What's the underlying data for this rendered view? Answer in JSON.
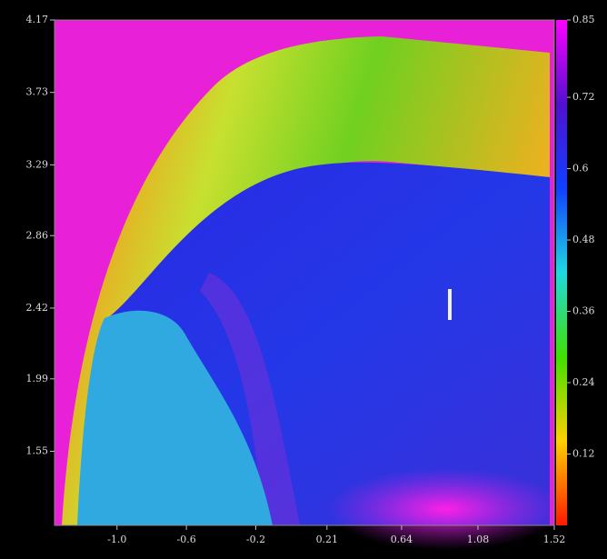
{
  "chart_data": {
    "type": "heatmap",
    "xlim": [
      -1.36,
      1.52
    ],
    "xticks": [
      {
        "value": -1.0,
        "label": "-1.0"
      },
      -0.6,
      -0.2,
      0.21,
      0.64,
      1.08,
      1.52
    ],
    "ylim": [
      1.1,
      4.17
    ],
    "yticks": [
      1.55,
      1.99,
      2.42,
      2.86,
      3.29,
      3.73,
      4.17
    ],
    "clim": [
      0,
      0.85
    ],
    "cticks": [
      0.12,
      0.24,
      0.36,
      0.48,
      0.6,
      0.72,
      0.85
    ],
    "colormap": [
      "#ff1a00",
      "#ffd000",
      "#40e000",
      "#20d8e0",
      "#1040ff",
      "#5010d0",
      "#ff00ff"
    ]
  }
}
